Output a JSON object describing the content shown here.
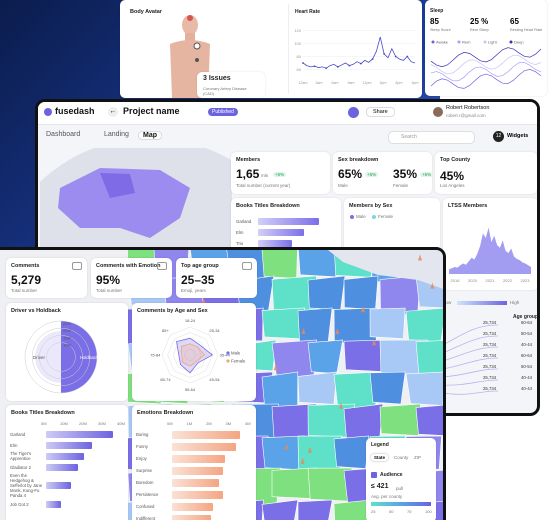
{
  "back": {
    "avatar": {
      "title": "Body Avatar",
      "issues": "3 Issues",
      "issue_detail": "Coronary Artery Disease (CAD)"
    },
    "heart_rate": {
      "title": "Heart Rate",
      "xtick_labels": [
        "12am",
        "3am",
        "6am",
        "9am",
        "12pm",
        "3pm",
        "6pm",
        "9pm"
      ],
      "yticks": [
        60,
        80,
        100,
        120
      ],
      "ylim": [
        50,
        130
      ],
      "color": "#4b4bc8",
      "values": [
        70,
        66,
        64,
        65,
        63,
        64,
        62,
        66,
        68,
        64,
        67,
        70,
        66,
        68,
        72,
        69,
        74,
        71,
        76,
        88,
        110,
        84,
        78,
        92,
        80,
        76,
        74,
        80,
        72,
        70
      ]
    },
    "sleep": {
      "title": "Sleep",
      "stats": [
        {
          "value": "85",
          "label": "Sleep Score"
        },
        {
          "value": "25 %",
          "label": "Rem Sleep"
        },
        {
          "value": "65",
          "label": "Resting Heart Rate"
        }
      ],
      "legend": [
        "Awake",
        "Rem",
        "Light",
        "Deep"
      ]
    }
  },
  "dashboard": {
    "brand": "fusedash",
    "project": "Project name",
    "status": "Published",
    "share": "Share",
    "user": {
      "name": "Robert Robertson",
      "email": "robert.r@gmail.com"
    },
    "tabs": [
      "Dashboard",
      "Landing",
      "Map"
    ],
    "search": "Search",
    "widgets_count": "12",
    "widgets": "Widgets",
    "members": {
      "title": "Members",
      "value": "1,65",
      "unit": "mln",
      "change": "+5%",
      "note": "Total number (current year)"
    },
    "sex": {
      "title": "Sex breakdown",
      "items": [
        {
          "value": "65%",
          "change": "+5%",
          "label": "Male"
        },
        {
          "value": "35%",
          "change": "+5%",
          "label": "Female"
        }
      ]
    },
    "county": {
      "title": "Top County",
      "value": "45%",
      "label": "Los Angeles"
    },
    "books": {
      "title": "Books Titles Breakdown",
      "categories": [
        "Garland",
        "Elm",
        "Trio"
      ],
      "values": [
        32,
        24,
        18
      ],
      "xlim": [
        0,
        40
      ],
      "color": "#7b6fe8"
    },
    "members_by_sex": {
      "title": "Members by Sex",
      "legend": [
        "Male",
        "Female"
      ]
    },
    "ltss": {
      "title": "LTSS Members",
      "xtick_labels": [
        "2016",
        "2020",
        "2021",
        "2022",
        "2023"
      ],
      "ylim": [
        0,
        100
      ],
      "color": "#8c84ee",
      "values": [
        8,
        10,
        12,
        11,
        15,
        18,
        16,
        22,
        28,
        25,
        35,
        48,
        70,
        62,
        80,
        55,
        66,
        50,
        45,
        58,
        40,
        36,
        44,
        30,
        26,
        24,
        20,
        18,
        15,
        12
      ]
    },
    "age": {
      "low": "Low",
      "high": "High",
      "title": "Age group",
      "rows": [
        {
          "value": "25,734",
          "label": "60-64"
        },
        {
          "value": "25,734",
          "label": "50-54"
        },
        {
          "value": "25,734",
          "label": "40-44"
        },
        {
          "value": "25,734",
          "label": "60-64"
        },
        {
          "value": "25,734",
          "label": "50-54"
        },
        {
          "value": "25,734",
          "label": "40-44"
        },
        {
          "value": "25,734",
          "label": "40-44"
        }
      ]
    }
  },
  "front": {
    "kpis": [
      {
        "title": "Comments",
        "value": "5,279",
        "note": "Total number"
      },
      {
        "title": "Comments with Emotion",
        "value": "95%",
        "note": "Total number"
      },
      {
        "title": "Top age group",
        "value": "25–35",
        "note": "Emoji, years"
      }
    ],
    "driver": {
      "title": "Driver vs Holdback",
      "categories": [
        "Driver",
        "Holdback"
      ],
      "values": [
        18,
        25
      ],
      "rlim": [
        0,
        25
      ],
      "rticks": [
        {
          "value": 10,
          "label": "10M"
        },
        {
          "value": 15,
          "label": "15M"
        },
        {
          "value": 20,
          "label": "20M"
        },
        {
          "value": 25,
          "label": "25M"
        }
      ]
    },
    "radar": {
      "title": "Comments by Age and Sex",
      "axes": [
        "18-24",
        "25-34",
        "35-44",
        "45-54",
        "55-64",
        "65-74",
        "75-84",
        "85+"
      ],
      "rlim": [
        0,
        5
      ],
      "series": [
        {
          "name": "Male",
          "color": "#7b6fe8",
          "values": [
            3,
            2.5,
            4,
            2,
            3.2,
            2.4,
            2,
            3.4
          ]
        },
        {
          "name": "Female",
          "color": "#f4a582",
          "values": [
            2,
            2,
            2.6,
            1.6,
            2,
            1.8,
            1.5,
            2.2
          ]
        }
      ]
    },
    "books": {
      "title": "Books Titles Breakdown",
      "categories": [
        "Garland",
        "Elm",
        "The Tiger's Apprentice",
        "Gladiator 2",
        "Even the Hedgehog & Sefferlot by Jane Monk, Kung-Fu Panda 4",
        "Job Got 2"
      ],
      "values": [
        35,
        24,
        20,
        17,
        13,
        8
      ],
      "xlim": [
        0,
        40
      ],
      "xticks": [
        {
          "value": 0,
          "label": "0M"
        },
        {
          "value": 10,
          "label": "10M"
        },
        {
          "value": 20,
          "label": "20M"
        },
        {
          "value": 30,
          "label": "30M"
        },
        {
          "value": 40,
          "label": "40M"
        }
      ],
      "color": "#6c63e0"
    },
    "emotions": {
      "title": "Emotions Breakdown",
      "categories": [
        "Boring",
        "Funny",
        "Enjoy",
        "Surprise",
        "Boredom",
        "Persistence",
        "Confused",
        "Indifferent"
      ],
      "values": [
        3.5,
        3.3,
        2.7,
        2.6,
        2.4,
        2.6,
        2.1,
        2.0
      ],
      "xlim": [
        0,
        4
      ],
      "xticks": [
        {
          "value": 0,
          "label": "0M"
        },
        {
          "value": 1,
          "label": "1M"
        },
        {
          "value": 2,
          "label": "2M"
        },
        {
          "value": 3,
          "label": "3M"
        },
        {
          "value": 4,
          "label": "4M"
        }
      ],
      "color": "#f4a582"
    },
    "legend": {
      "title": "Legend",
      "tabs": [
        "State",
        "County",
        "ZIP"
      ],
      "layer": "Audience",
      "value": "≤ 421",
      "unit": "pull",
      "note": "Avg. per county",
      "scale": [
        "25",
        "50",
        "75",
        "100"
      ]
    }
  }
}
